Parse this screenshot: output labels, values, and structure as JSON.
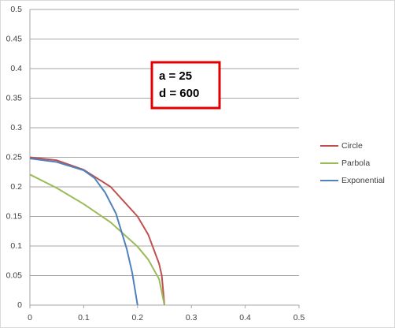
{
  "chart_data": {
    "type": "line",
    "annotations": [
      "a = 25",
      "d = 600"
    ],
    "xlim": [
      0,
      0.5
    ],
    "xticks": [
      0,
      0.1,
      0.2,
      0.3,
      0.4,
      0.5
    ],
    "ylim": [
      0,
      0.5
    ],
    "yticks": [
      0,
      0.05,
      0.1,
      0.15,
      0.2,
      0.25,
      0.3,
      0.35,
      0.4,
      0.45,
      0.5
    ],
    "grid": true,
    "legend": "right",
    "series": [
      {
        "name": "Circle",
        "color": "#c0504d",
        "x": [
          0,
          0.05,
          0.1,
          0.15,
          0.2,
          0.22,
          0.24,
          0.245,
          0.25
        ],
        "values": [
          0.25,
          0.245,
          0.229,
          0.2,
          0.15,
          0.119,
          0.07,
          0.05,
          0
        ]
      },
      {
        "name": "Parbola",
        "color": "#9bbb59",
        "x": [
          0,
          0.05,
          0.1,
          0.15,
          0.2,
          0.22,
          0.24,
          0.25
        ],
        "values": [
          0.221,
          0.198,
          0.171,
          0.14,
          0.099,
          0.077,
          0.044,
          0
        ]
      },
      {
        "name": "Exponential",
        "color": "#4f81bd",
        "x": [
          0,
          0.05,
          0.1,
          0.12,
          0.14,
          0.16,
          0.18,
          0.19,
          0.2
        ],
        "values": [
          0.248,
          0.242,
          0.228,
          0.215,
          0.19,
          0.155,
          0.095,
          0.055,
          0
        ]
      }
    ]
  }
}
